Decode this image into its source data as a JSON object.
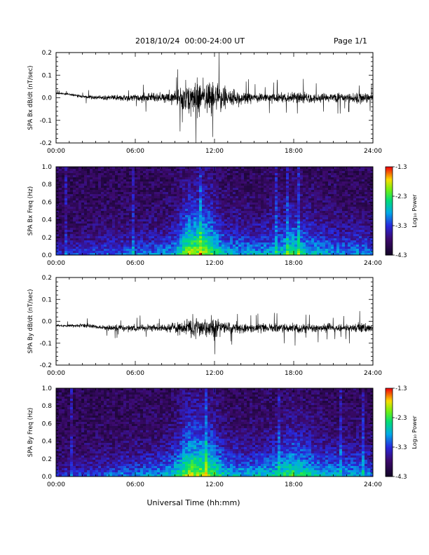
{
  "header": {
    "title": "2018/10/24  00:00-24:00 UT",
    "page": "Page 1/1"
  },
  "colors": {
    "background": "#ffffff",
    "trace": "#000000",
    "spectrogram_background": "#1a0a3c"
  },
  "chart_data": [
    {
      "type": "line",
      "ylabel": "SPA Bx dB/dt (nT/sec)",
      "xlim": [
        0,
        24
      ],
      "ylim": [
        -0.2,
        0.2
      ],
      "x_ticks": [
        "00:00",
        "06:00",
        "12:00",
        "18:00",
        "24:00"
      ],
      "y_ticks": [
        "0.2",
        "0.1",
        "0.0",
        "-0.1",
        "-0.2"
      ],
      "x": [
        0,
        1,
        2,
        3,
        4,
        5,
        6,
        7,
        8,
        9,
        9.5,
        10,
        10.5,
        11,
        11.5,
        12,
        12.5,
        13,
        14,
        15,
        16,
        17,
        18,
        19,
        20,
        21,
        22,
        23,
        24
      ],
      "envelope": [
        0.015,
        0.015,
        0.02,
        0.025,
        0.03,
        0.035,
        0.04,
        0.05,
        0.06,
        0.08,
        0.12,
        0.2,
        0.2,
        0.2,
        0.2,
        0.2,
        0.15,
        0.1,
        0.08,
        0.05,
        0.05,
        0.06,
        0.07,
        0.06,
        0.05,
        0.05,
        0.05,
        0.06,
        0.04
      ],
      "baseline": [
        0.02,
        0.015,
        0.005,
        0.0,
        0.0,
        0.0,
        0.0,
        0.0,
        0.0,
        0.0,
        0.0,
        0.0,
        0.0,
        0.0,
        0.0,
        0.0,
        0.0,
        0.0,
        0.0,
        0.0,
        0.0,
        0.0,
        0.0,
        0.0,
        0.0,
        0.0,
        0.0,
        0.0,
        0.0
      ]
    },
    {
      "type": "heatmap",
      "ylabel": "SPA Bx Freq (Hz)",
      "xlim": [
        0,
        24
      ],
      "ylim": [
        0,
        1.0
      ],
      "x_ticks": [
        "00:00",
        "06:00",
        "12:00",
        "18:00",
        "24:00"
      ],
      "y_ticks": [
        "1.0",
        "0.8",
        "0.6",
        "0.4",
        "0.2",
        "0.0"
      ],
      "colorbar": {
        "label": "Log₁₀ Power",
        "range": [
          -4.3,
          -1.3
        ],
        "ticks": [
          "-1.3",
          "-2.3",
          "-3.3",
          "-4.3"
        ]
      },
      "x": [
        0,
        1,
        2,
        3,
        4,
        5,
        6,
        7,
        8,
        9,
        9.5,
        10,
        10.5,
        11,
        11.5,
        12,
        12.5,
        13,
        14,
        15,
        16,
        17,
        18,
        19,
        20,
        21,
        22,
        23,
        24
      ],
      "activity": [
        0.15,
        0.15,
        0.2,
        0.25,
        0.3,
        0.3,
        0.35,
        0.35,
        0.4,
        0.5,
        0.75,
        1.0,
        1.0,
        1.0,
        0.95,
        0.8,
        0.6,
        0.5,
        0.5,
        0.45,
        0.5,
        0.6,
        0.75,
        0.6,
        0.5,
        0.45,
        0.4,
        0.45,
        0.35
      ]
    },
    {
      "type": "line",
      "ylabel": "SPA By dB/dt (nT/sec)",
      "xlim": [
        0,
        24
      ],
      "ylim": [
        -0.2,
        0.2
      ],
      "x_ticks": [
        "00:00",
        "06:00",
        "12:00",
        "18:00",
        "24:00"
      ],
      "y_ticks": [
        "0.2",
        "0.1",
        "0.0",
        "-0.1",
        "-0.2"
      ],
      "x": [
        0,
        1,
        2,
        3,
        4,
        5,
        6,
        7,
        8,
        9,
        9.5,
        10,
        10.5,
        11,
        11.5,
        12,
        12.5,
        13,
        14,
        15,
        16,
        17,
        18,
        19,
        20,
        21,
        22,
        23,
        24
      ],
      "envelope": [
        0.015,
        0.015,
        0.025,
        0.025,
        0.03,
        0.04,
        0.04,
        0.045,
        0.05,
        0.06,
        0.09,
        0.12,
        0.13,
        0.12,
        0.11,
        0.15,
        0.08,
        0.06,
        0.06,
        0.05,
        0.05,
        0.05,
        0.06,
        0.05,
        0.05,
        0.05,
        0.05,
        0.06,
        0.04
      ],
      "baseline": [
        -0.02,
        -0.02,
        -0.02,
        -0.025,
        -0.03,
        -0.03,
        -0.03,
        -0.03,
        -0.03,
        -0.03,
        -0.03,
        -0.03,
        -0.03,
        -0.03,
        -0.03,
        -0.03,
        -0.03,
        -0.03,
        -0.03,
        -0.03,
        -0.03,
        -0.03,
        -0.03,
        -0.03,
        -0.03,
        -0.03,
        -0.03,
        -0.03,
        -0.03
      ]
    },
    {
      "type": "heatmap",
      "ylabel": "SPA By Freq (Hz)",
      "xlim": [
        0,
        24
      ],
      "ylim": [
        0,
        1.0
      ],
      "x_ticks": [
        "00:00",
        "06:00",
        "12:00",
        "18:00",
        "24:00"
      ],
      "y_ticks": [
        "1.0",
        "0.8",
        "0.6",
        "0.4",
        "0.2",
        "0.0"
      ],
      "colorbar": {
        "label": "Log₁₀ Power",
        "range": [
          -4.3,
          -1.3
        ],
        "ticks": [
          "-1.3",
          "-2.3",
          "-3.3",
          "-4.3"
        ]
      },
      "x": [
        0,
        1,
        2,
        3,
        4,
        5,
        6,
        7,
        8,
        9,
        9.5,
        10,
        10.5,
        11,
        11.5,
        12,
        12.5,
        13,
        14,
        15,
        16,
        17,
        18,
        19,
        20,
        21,
        22,
        23,
        24
      ],
      "activity": [
        0.15,
        0.15,
        0.2,
        0.25,
        0.3,
        0.35,
        0.35,
        0.4,
        0.45,
        0.6,
        0.85,
        1.0,
        1.0,
        1.0,
        0.95,
        0.85,
        0.65,
        0.55,
        0.5,
        0.5,
        0.55,
        0.65,
        0.8,
        0.65,
        0.55,
        0.5,
        0.45,
        0.5,
        0.35
      ]
    }
  ],
  "xlabel": "Universal Time (hh:mm)"
}
